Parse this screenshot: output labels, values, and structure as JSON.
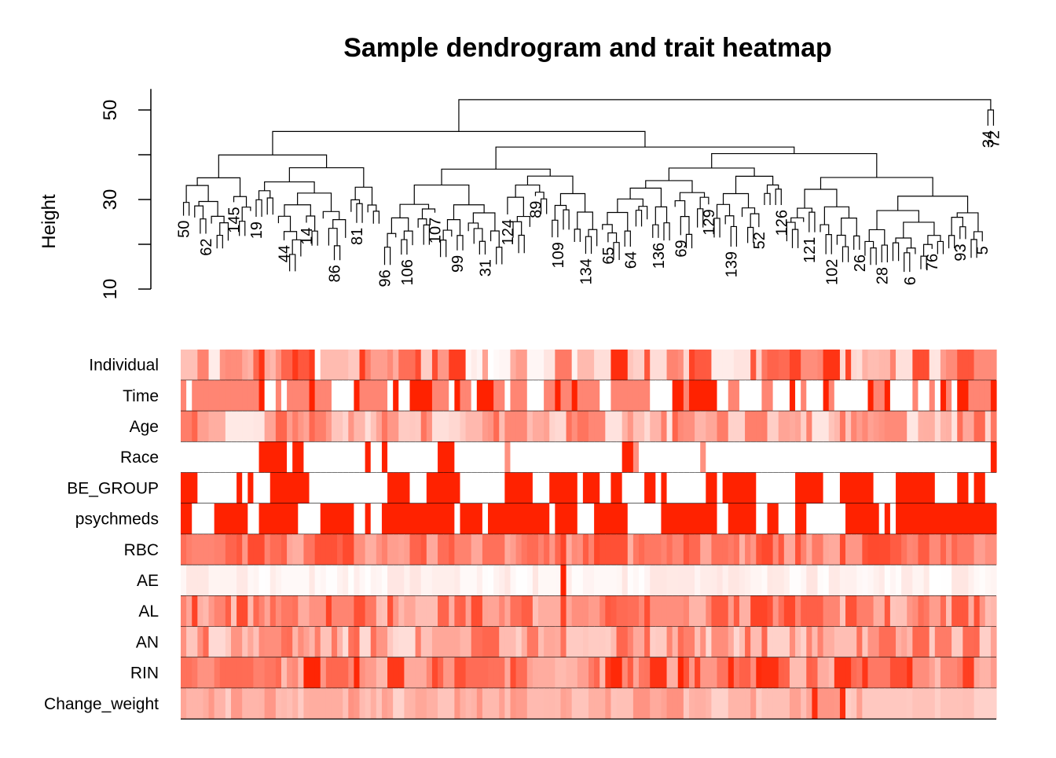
{
  "chart_data": {
    "type": "heatmap",
    "title": "Sample dendrogram and trait heatmap",
    "dendrogram": {
      "ylabel": "Height",
      "ylim": [
        10,
        55
      ],
      "yticks": [
        10,
        30,
        50
      ],
      "root_height": 52.3,
      "left_branch_height": 45.2,
      "right_branch_height": 50,
      "outgroup_labels": [
        "34",
        "72"
      ],
      "visible_leaf_labels": [
        "50",
        "62",
        "145",
        "19",
        "44",
        "14",
        "86",
        "81",
        "96",
        "106",
        "107",
        "99",
        "31",
        "124",
        "89",
        "109",
        "134",
        "65",
        "64",
        "136",
        "69",
        "129",
        "139",
        "52",
        "126",
        "121",
        "102",
        "26",
        "28",
        "6",
        "76",
        "93",
        "5"
      ]
    },
    "trait_rows": [
      "Individual",
      "Time",
      "Age",
      "Race",
      "BE_GROUP",
      "psychmeds",
      "RBC",
      "AE",
      "AL",
      "AN",
      "RIN",
      "Change_weight"
    ],
    "n_samples": 146,
    "colors": {
      "high": "#ff2200",
      "low": "#ffffff",
      "border": "#000000"
    }
  }
}
